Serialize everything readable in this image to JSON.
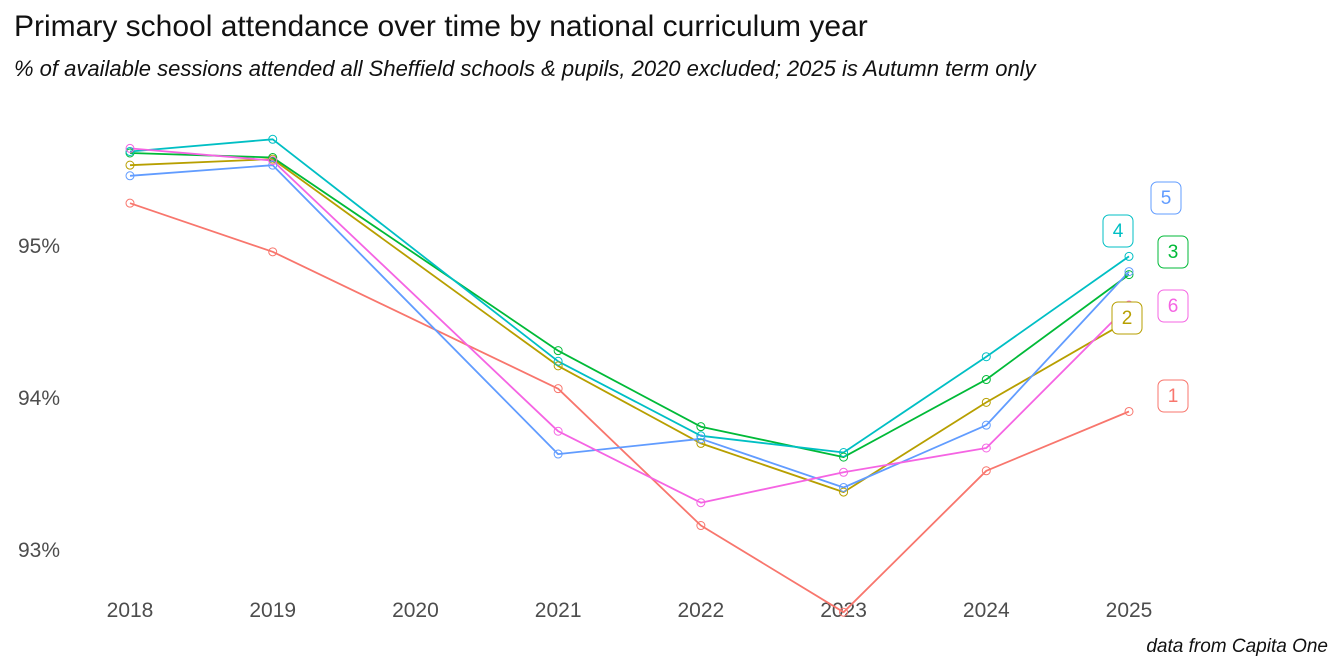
{
  "chart_data": {
    "type": "line",
    "title": "Primary school attendance over time by national curriculum year",
    "subtitle": "% of available sessions attended all Sheffield schools & pupils, 2020 excluded; 2025 is Autumn term only",
    "caption": "data from Capita One",
    "xlabel": "",
    "ylabel": "",
    "x": [
      2018,
      2019,
      2020,
      2021,
      2022,
      2023,
      2024,
      2025
    ],
    "x_tick_labels": [
      "2018",
      "2019",
      "2020",
      "2021",
      "2022",
      "2023",
      "2024",
      "2025"
    ],
    "y_ticks": [
      93,
      94,
      95
    ],
    "y_tick_labels": [
      "93%",
      "94%",
      "95%"
    ],
    "ylim": [
      92.45,
      96.1
    ],
    "grid": false,
    "legend": "end labels",
    "series": [
      {
        "name": "1",
        "color": "#F8766D",
        "points": [
          [
            2018,
            95.29
          ],
          [
            2019,
            94.97
          ],
          [
            2021,
            94.07
          ],
          [
            2022,
            93.17
          ],
          [
            2023,
            92.6
          ],
          [
            2024,
            93.53
          ],
          [
            2025,
            93.92
          ]
        ]
      },
      {
        "name": "2",
        "color": "#B79F00",
        "points": [
          [
            2018,
            95.54
          ],
          [
            2019,
            95.58
          ],
          [
            2021,
            94.22
          ],
          [
            2022,
            93.71
          ],
          [
            2023,
            93.39
          ],
          [
            2024,
            93.98
          ],
          [
            2025,
            94.52
          ]
        ]
      },
      {
        "name": "3",
        "color": "#00BA38",
        "points": [
          [
            2018,
            95.62
          ],
          [
            2019,
            95.59
          ],
          [
            2021,
            94.32
          ],
          [
            2022,
            93.82
          ],
          [
            2023,
            93.62
          ],
          [
            2024,
            94.13
          ],
          [
            2025,
            94.82
          ]
        ]
      },
      {
        "name": "4",
        "color": "#00BFC4",
        "points": [
          [
            2018,
            95.63
          ],
          [
            2019,
            95.71
          ],
          [
            2021,
            94.25
          ],
          [
            2022,
            93.76
          ],
          [
            2023,
            93.65
          ],
          [
            2024,
            94.28
          ],
          [
            2025,
            94.94
          ]
        ]
      },
      {
        "name": "5",
        "color": "#619CFF",
        "points": [
          [
            2018,
            95.47
          ],
          [
            2019,
            95.54
          ],
          [
            2021,
            93.64
          ],
          [
            2022,
            93.74
          ],
          [
            2023,
            93.42
          ],
          [
            2024,
            93.83
          ],
          [
            2025,
            94.84
          ]
        ]
      },
      {
        "name": "6",
        "color": "#F564E3",
        "points": [
          [
            2018,
            95.65
          ],
          [
            2019,
            95.57
          ],
          [
            2021,
            93.79
          ],
          [
            2022,
            93.32
          ],
          [
            2023,
            93.52
          ],
          [
            2024,
            93.68
          ],
          [
            2025,
            94.62
          ]
        ]
      }
    ]
  }
}
